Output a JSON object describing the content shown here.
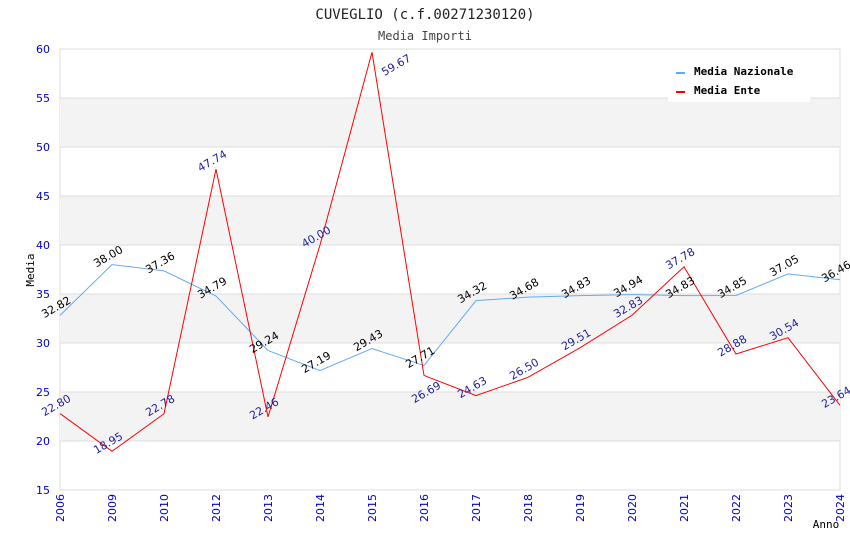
{
  "chart_data": {
    "type": "line",
    "title": "CUVEGLIO (c.f.00271230120)",
    "subtitle": "Media Importi",
    "xlabel": "Anno",
    "ylabel": "Media",
    "ylim": [
      15,
      60
    ],
    "yticks": [
      15,
      20,
      25,
      30,
      35,
      40,
      45,
      50,
      55,
      60
    ],
    "categories": [
      "2006",
      "2009",
      "2010",
      "2012",
      "2013",
      "2014",
      "2015",
      "2016",
      "2017",
      "2018",
      "2019",
      "2020",
      "2021",
      "2022",
      "2023",
      "2024"
    ],
    "series": [
      {
        "name": "Media Nazionale",
        "color": "#66aaee",
        "label_color": "#000000",
        "values": [
          32.82,
          38.0,
          37.36,
          34.79,
          29.24,
          27.19,
          29.43,
          27.71,
          34.32,
          34.68,
          34.83,
          34.94,
          34.83,
          34.85,
          37.05,
          36.46
        ]
      },
      {
        "name": "Media Ente",
        "color": "#ff0000",
        "label_color": "#22229a",
        "values": [
          22.8,
          18.95,
          22.78,
          47.74,
          22.46,
          40.0,
          59.67,
          26.69,
          24.63,
          26.5,
          29.51,
          32.83,
          37.78,
          28.88,
          30.54,
          23.64
        ]
      }
    ],
    "grid": true,
    "legend_position": "top-right"
  }
}
